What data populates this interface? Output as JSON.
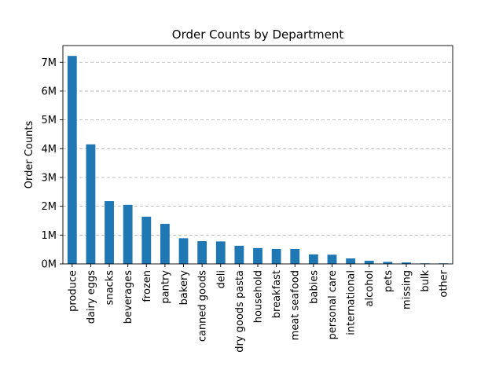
{
  "chart_data": {
    "type": "bar",
    "title": "Order Counts by Department",
    "xlabel": "",
    "ylabel": "Order Counts",
    "categories": [
      "produce",
      "dairy eggs",
      "snacks",
      "beverages",
      "frozen",
      "pantry",
      "bakery",
      "canned goods",
      "deli",
      "dry goods pasta",
      "household",
      "breakfast",
      "meat seafood",
      "babies",
      "personal care",
      "international",
      "alcohol",
      "pets",
      "missing",
      "bulk",
      "other"
    ],
    "values": [
      7220000,
      4150000,
      2180000,
      2050000,
      1640000,
      1390000,
      890000,
      790000,
      780000,
      630000,
      550000,
      520000,
      520000,
      330000,
      320000,
      190000,
      110000,
      70000,
      50000,
      20000,
      20000
    ],
    "ylim": [
      0,
      7580000
    ],
    "yticks": [
      0,
      1000000,
      2000000,
      3000000,
      4000000,
      5000000,
      6000000,
      7000000
    ],
    "ytick_labels": [
      "0M",
      "1M",
      "2M",
      "3M",
      "4M",
      "5M",
      "6M",
      "7M"
    ],
    "grid": "y-dashed",
    "legend": "none",
    "bar_color": "#1f77b4"
  }
}
